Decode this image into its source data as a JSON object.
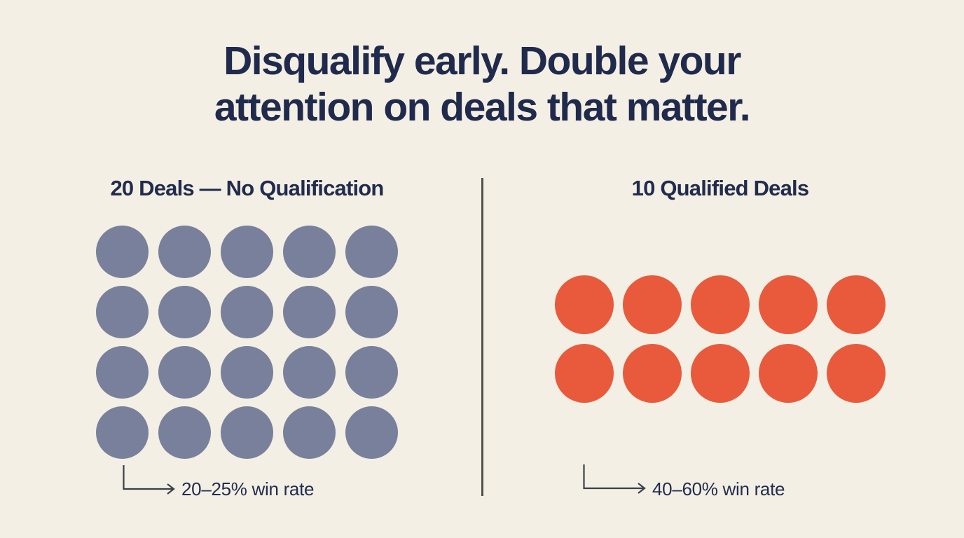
{
  "title": {
    "line1": "Disqualify early. Double your",
    "line2": "attention on deals that matter."
  },
  "left_panel": {
    "header": "20 Deals — No Qualification",
    "deal_count": 20,
    "grid_columns": 5,
    "grid_rows": 4,
    "dot_color": "#78809B",
    "dot_name": "unqualified-deal-dot",
    "win_rate_label": "20–25% win rate"
  },
  "right_panel": {
    "header": "10 Qualified Deals",
    "deal_count": 10,
    "grid_columns": 5,
    "grid_rows": 2,
    "dot_color": "#E85A3B",
    "dot_name": "qualified-deal-dot",
    "win_rate_label": "40–60% win rate"
  },
  "colors": {
    "background": "#F3EFE4",
    "title_text": "#202A4C",
    "header_text": "#212B4D",
    "label_text": "#232C4E",
    "divider": "#50504A",
    "arrow": "#3A4049",
    "unqualified_dot": "#78809B",
    "qualified_dot": "#E85A3B"
  }
}
